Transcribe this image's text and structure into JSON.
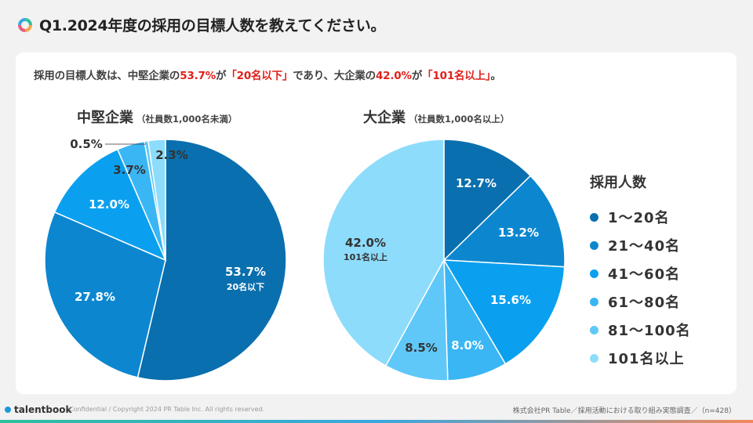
{
  "header": {
    "question": "Q1.2024年度の採用の目標人数を教えてください。"
  },
  "summary": {
    "part1": "採用の目標人数は、中堅企業の",
    "pct1": "53.7%",
    "part2": "が",
    "hl1": "「20名以下」",
    "part3": "であり、大企業の",
    "pct2": "42.0%",
    "part4": "が",
    "hl2": "「101名以上」",
    "part5": "。"
  },
  "legend": {
    "title": "採用人数",
    "items": [
      {
        "label": "1～20名",
        "color": "#0a6fae"
      },
      {
        "label": "21～40名",
        "color": "#0c87cf"
      },
      {
        "label": "41～60名",
        "color": "#0aa0ef"
      },
      {
        "label": "61～80名",
        "color": "#3ab6f5"
      },
      {
        "label": "81～100名",
        "color": "#5fc8f8"
      },
      {
        "label": "101名以上",
        "color": "#8ddcfb"
      }
    ]
  },
  "chart_data": [
    {
      "type": "pie",
      "title": "中堅企業",
      "subtitle": "（社員数1,000名未満）",
      "categories": [
        "1～20名",
        "21～40名",
        "41～60名",
        "61～80名",
        "81～100名",
        "101名以上"
      ],
      "values": [
        53.7,
        27.8,
        12.0,
        3.7,
        0.5,
        2.3
      ],
      "labels": [
        "53.7%",
        "27.8%",
        "12.0%",
        "3.7%",
        "0.5%",
        "2.3%"
      ],
      "annotation": "20名以下",
      "colors": [
        "#0a6fae",
        "#0c87cf",
        "#0aa0ef",
        "#3ab6f5",
        "#5fc8f8",
        "#8ddcfb"
      ]
    },
    {
      "type": "pie",
      "title": "大企業",
      "subtitle": "（社員数1,000名以上）",
      "categories": [
        "1～20名",
        "21～40名",
        "41～60名",
        "61～80名",
        "81～100名",
        "101名以上"
      ],
      "values": [
        12.7,
        13.2,
        15.6,
        8.0,
        8.5,
        42.0
      ],
      "labels": [
        "12.7%",
        "13.2%",
        "15.6%",
        "8.0%",
        "8.5%",
        "42.0%"
      ],
      "annotation": "101名以上",
      "colors": [
        "#0a6fae",
        "#0c87cf",
        "#0aa0ef",
        "#3ab6f5",
        "#5fc8f8",
        "#8ddcfb"
      ]
    }
  ],
  "footer": {
    "brand": "talentbook",
    "copyright": "Confidential / Copyright 2024 PR Table Inc. All rights reserved.",
    "source": "株式会社PR Table／採用活動における取り組み実態調査／（n=428）"
  }
}
